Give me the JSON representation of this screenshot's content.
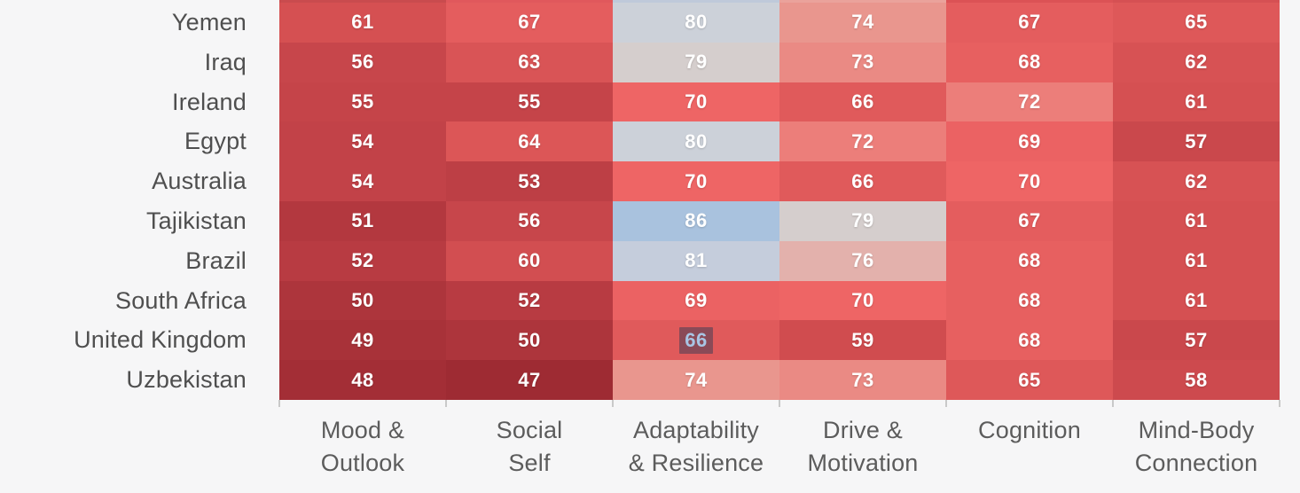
{
  "page": {
    "background_color": "#f6f6f7",
    "row_label_color": "#4f4f4f",
    "column_label_color": "#5c5c5c",
    "tick_color": "#c9c9c9",
    "cell_text_color": "#ffffff"
  },
  "chart_data": {
    "type": "heatmap",
    "columns": [
      "Mood & Outlook",
      "Social Self",
      "Adaptability & Resilience",
      "Drive & Motivation",
      "Cognition",
      "Mind-Body Connection"
    ],
    "column_label_lines": [
      "Mood &\nOutlook",
      "Social\nSelf",
      "Adaptability\n& Resilience",
      "Drive &\nMotivation",
      "Cognition",
      "Mind-Body\nConnection"
    ],
    "rows": [
      {
        "country": "Yemen",
        "values": [
          61,
          67,
          80,
          74,
          67,
          65
        ]
      },
      {
        "country": "Iraq",
        "values": [
          56,
          63,
          79,
          73,
          68,
          62
        ]
      },
      {
        "country": "Ireland",
        "values": [
          55,
          55,
          70,
          66,
          72,
          61
        ]
      },
      {
        "country": "Egypt",
        "values": [
          54,
          64,
          80,
          72,
          69,
          57
        ]
      },
      {
        "country": "Australia",
        "values": [
          54,
          53,
          70,
          66,
          70,
          62
        ]
      },
      {
        "country": "Tajikistan",
        "values": [
          51,
          56,
          86,
          79,
          67,
          61
        ]
      },
      {
        "country": "Brazil",
        "values": [
          52,
          60,
          81,
          76,
          68,
          61
        ]
      },
      {
        "country": "South Africa",
        "values": [
          50,
          52,
          69,
          70,
          68,
          61
        ]
      },
      {
        "country": "United Kingdom",
        "values": [
          49,
          50,
          66,
          59,
          68,
          57
        ]
      },
      {
        "country": "Uzbekistan",
        "values": [
          48,
          47,
          74,
          73,
          65,
          58
        ]
      }
    ],
    "value_range": [
      47,
      86
    ],
    "color_scale_anchors": [
      [
        47,
        "#9e2b33"
      ],
      [
        54,
        "#c24248"
      ],
      [
        61,
        "#d55052"
      ],
      [
        66,
        "#e05a5b"
      ],
      [
        70,
        "#ee6565"
      ],
      [
        74,
        "#e9968e"
      ],
      [
        76,
        "#e3b1ac"
      ],
      [
        79,
        "#d5cecd"
      ],
      [
        80,
        "#ccd1d9"
      ],
      [
        81,
        "#c5cddc"
      ],
      [
        86,
        "#a9c2de"
      ]
    ],
    "partial_top_row_colors": [
      "#c94b4e",
      "#e0585c",
      "#bfc9da",
      "#eaa29b",
      "#db5255",
      "#d55053"
    ],
    "selected_cell": {
      "row": "United Kingdom",
      "column": "Adaptability & Resilience",
      "row_index": 8,
      "col_index": 2,
      "value": 66,
      "highlight_background": "#8a4a57",
      "highlight_text_color": "#a8c5e4"
    },
    "legend_position": "none",
    "grid": false
  }
}
